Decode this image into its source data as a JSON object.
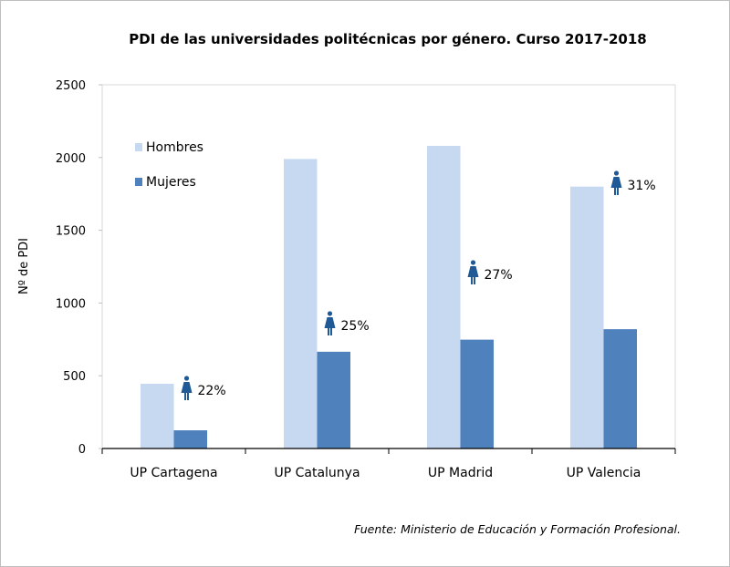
{
  "chart_data": {
    "type": "bar",
    "title": "PDI de las universidades politécnicas por género. Curso 2017-2018",
    "ylabel": "Nº de PDI",
    "xlabel": "",
    "ylim": [
      0,
      2500
    ],
    "yticks": [
      "0",
      "500",
      "1000",
      "1500",
      "2000",
      "2500"
    ],
    "categories": [
      "UP Cartagena",
      "UP Catalunya",
      "UP Madrid",
      "UP Valencia"
    ],
    "series": [
      {
        "name": "Hombres",
        "color": "#c6d9f1",
        "values": [
          445,
          1990,
          2080,
          1800
        ]
      },
      {
        "name": "Mujeres",
        "color": "#4f81bd",
        "values": [
          125,
          665,
          748,
          820
        ]
      }
    ],
    "annotations": [
      "22%",
      "25%",
      "27%",
      "31%"
    ],
    "annotation_icon": "woman-icon",
    "annotation_color": "#1f5a96",
    "legend_placement": "top-left (inside)",
    "grid": false,
    "source": "Fuente:  Ministerio de Educación y Formación Profesional."
  }
}
